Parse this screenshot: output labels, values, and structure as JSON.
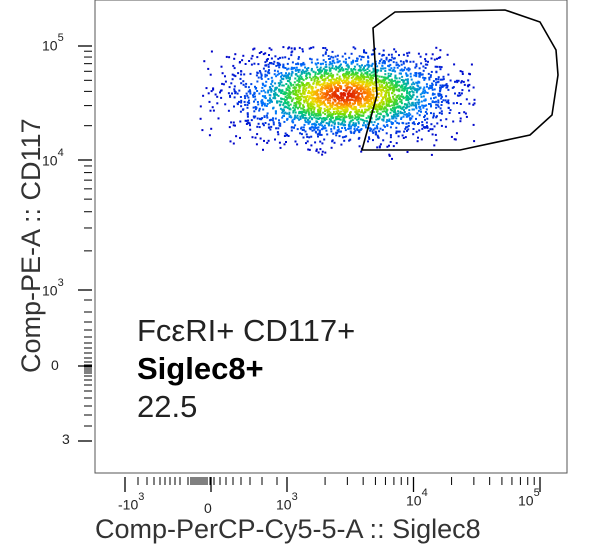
{
  "chart_data": {
    "type": "scatter",
    "title": "",
    "xlabel": "Comp-PerCP-Cy5-5-A :: Siglec8",
    "ylabel": "Comp-PE-A :: CD117",
    "x_scale": "biexponential",
    "y_scale": "biexponential",
    "x_ticks": [
      {
        "base": "-10",
        "exp": "3"
      },
      {
        "base": "0",
        "exp": ""
      },
      {
        "base": "10",
        "exp": "3"
      },
      {
        "base": "10",
        "exp": "4"
      },
      {
        "base": "10",
        "exp": "5"
      }
    ],
    "y_ticks": [
      {
        "base": "10",
        "exp": "5"
      },
      {
        "base": "10",
        "exp": "4"
      },
      {
        "base": "10",
        "exp": "3"
      },
      {
        "base": "0",
        "exp": ""
      },
      {
        "base": "3",
        "exp": ""
      }
    ],
    "cloud": {
      "center_x": 2800,
      "center_y": 38000,
      "x_range": [
        200,
        30000
      ],
      "y_range": [
        10000,
        100000
      ],
      "coloring": "density (blue→green→yellow→red)"
    },
    "gate": {
      "name": "FcεRI+ CD117+ Siglec8+",
      "line1": "FcεRI+ CD117+",
      "line2": "Siglec8+",
      "percent": "22.5"
    },
    "grid": false
  }
}
